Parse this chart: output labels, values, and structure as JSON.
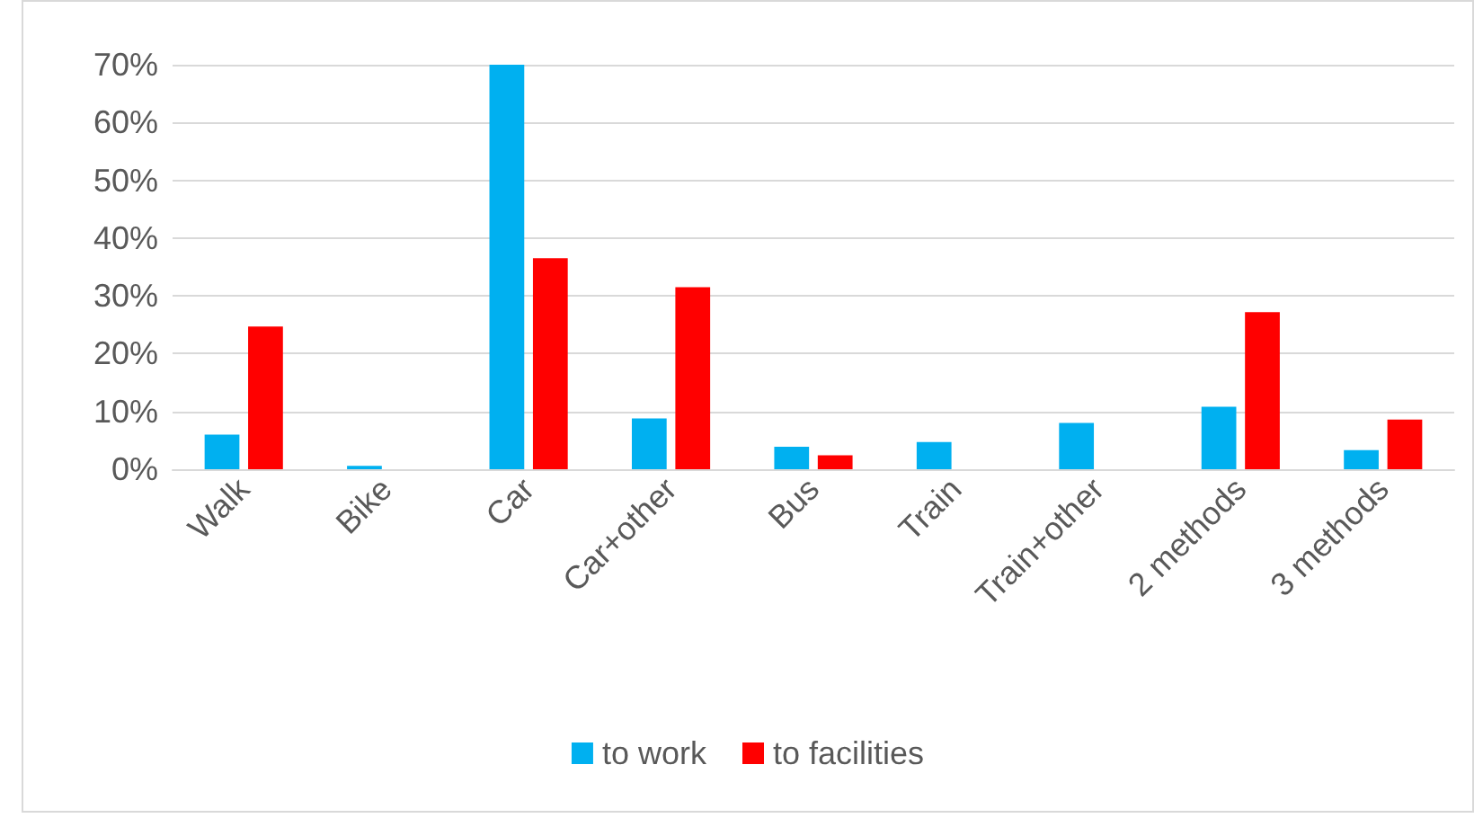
{
  "chart_data": {
    "type": "bar",
    "categories": [
      "Walk",
      "Bike",
      "Car",
      "Car+other",
      "Bus",
      "Train",
      "Train+other",
      "2 methods",
      "3 methods"
    ],
    "series": [
      {
        "name": "to work",
        "color": "#00b0f0",
        "values": [
          6.0,
          0.6,
          70,
          8.8,
          3.9,
          4.7,
          8.0,
          10.8,
          3.3
        ]
      },
      {
        "name": "to facilities",
        "color": "#ff0000",
        "values": [
          24.7,
          0,
          36.5,
          31.5,
          2.4,
          0,
          0,
          27.2,
          8.6
        ]
      }
    ],
    "ylim": [
      0,
      70
    ],
    "yticks": [
      {
        "value": 0,
        "label": "0%"
      },
      {
        "value": 10,
        "label": "10%"
      },
      {
        "value": 20,
        "label": "20%"
      },
      {
        "value": 30,
        "label": "30%"
      },
      {
        "value": 40,
        "label": "40%"
      },
      {
        "value": 50,
        "label": "50%"
      },
      {
        "value": 60,
        "label": "60%"
      },
      {
        "value": 70,
        "label": "70%"
      }
    ],
    "grid": "y",
    "legend": "bottom"
  }
}
